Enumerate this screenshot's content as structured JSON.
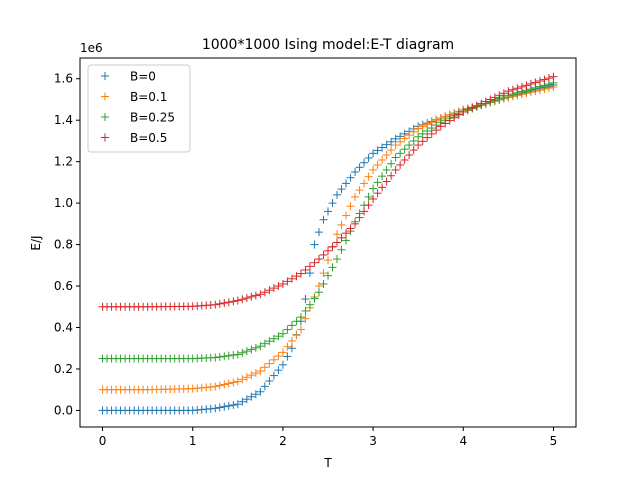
{
  "chart_data": {
    "type": "scatter",
    "title": "1000*1000 Ising model:E-T diagram",
    "xlabel": "T",
    "ylabel": "E/J",
    "y_offset_label": "1e6",
    "xlim": [
      -0.25,
      5.25
    ],
    "ylim": [
      -0.08,
      1.7
    ],
    "x_ticks": [
      0,
      1,
      2,
      3,
      4,
      5
    ],
    "x_tick_labels": [
      "0",
      "1",
      "2",
      "3",
      "4",
      "5"
    ],
    "y_ticks": [
      0.0,
      0.2,
      0.4,
      0.6,
      0.8,
      1.0,
      1.2,
      1.4,
      1.6
    ],
    "y_tick_labels": [
      "0.0",
      "0.2",
      "0.4",
      "0.6",
      "0.8",
      "1.0",
      "1.2",
      "1.4",
      "1.6"
    ],
    "marker": "plus",
    "grid": false,
    "legend_position": "top-left",
    "series": [
      {
        "name": "B=0",
        "color": "#1f77b4",
        "points": [
          [
            0,
            0.0
          ],
          [
            0.5,
            0.0
          ],
          [
            1.0,
            0.0
          ],
          [
            1.25,
            0.01
          ],
          [
            1.5,
            0.03
          ],
          [
            1.75,
            0.09
          ],
          [
            2.0,
            0.22
          ],
          [
            2.1,
            0.3
          ],
          [
            2.2,
            0.43
          ],
          [
            2.27,
            0.58
          ],
          [
            2.35,
            0.8
          ],
          [
            2.45,
            0.92
          ],
          [
            2.6,
            1.04
          ],
          [
            2.8,
            1.15
          ],
          [
            3.0,
            1.24
          ],
          [
            3.25,
            1.31
          ],
          [
            3.5,
            1.37
          ],
          [
            3.75,
            1.41
          ],
          [
            4.0,
            1.45
          ],
          [
            4.5,
            1.51
          ],
          [
            5.0,
            1.57
          ]
        ]
      },
      {
        "name": "B=0.1",
        "color": "#ff7f0e",
        "points": [
          [
            0,
            0.1
          ],
          [
            0.5,
            0.1
          ],
          [
            1.0,
            0.105
          ],
          [
            1.25,
            0.115
          ],
          [
            1.5,
            0.14
          ],
          [
            1.75,
            0.19
          ],
          [
            2.0,
            0.28
          ],
          [
            2.2,
            0.39
          ],
          [
            2.4,
            0.6
          ],
          [
            2.6,
            0.85
          ],
          [
            2.8,
            1.03
          ],
          [
            3.0,
            1.16
          ],
          [
            3.25,
            1.28
          ],
          [
            3.5,
            1.36
          ],
          [
            3.75,
            1.41
          ],
          [
            4.0,
            1.45
          ],
          [
            4.5,
            1.51
          ],
          [
            5.0,
            1.56
          ]
        ]
      },
      {
        "name": "B=0.25",
        "color": "#2ca02c",
        "points": [
          [
            0,
            0.25
          ],
          [
            0.5,
            0.25
          ],
          [
            1.0,
            0.25
          ],
          [
            1.25,
            0.255
          ],
          [
            1.5,
            0.27
          ],
          [
            1.75,
            0.31
          ],
          [
            2.0,
            0.37
          ],
          [
            2.2,
            0.45
          ],
          [
            2.4,
            0.57
          ],
          [
            2.6,
            0.73
          ],
          [
            2.8,
            0.91
          ],
          [
            3.0,
            1.07
          ],
          [
            3.25,
            1.22
          ],
          [
            3.5,
            1.32
          ],
          [
            3.75,
            1.39
          ],
          [
            4.0,
            1.44
          ],
          [
            4.5,
            1.52
          ],
          [
            5.0,
            1.58
          ]
        ]
      },
      {
        "name": "B=0.5",
        "color": "#d62728",
        "points": [
          [
            0,
            0.5
          ],
          [
            0.5,
            0.5
          ],
          [
            1.0,
            0.502
          ],
          [
            1.25,
            0.51
          ],
          [
            1.5,
            0.53
          ],
          [
            1.75,
            0.56
          ],
          [
            2.0,
            0.61
          ],
          [
            2.2,
            0.66
          ],
          [
            2.4,
            0.73
          ],
          [
            2.6,
            0.81
          ],
          [
            2.8,
            0.9
          ],
          [
            3.0,
            1.02
          ],
          [
            3.25,
            1.16
          ],
          [
            3.5,
            1.28
          ],
          [
            3.75,
            1.37
          ],
          [
            4.0,
            1.44
          ],
          [
            4.5,
            1.54
          ],
          [
            5.0,
            1.61
          ]
        ]
      }
    ]
  }
}
